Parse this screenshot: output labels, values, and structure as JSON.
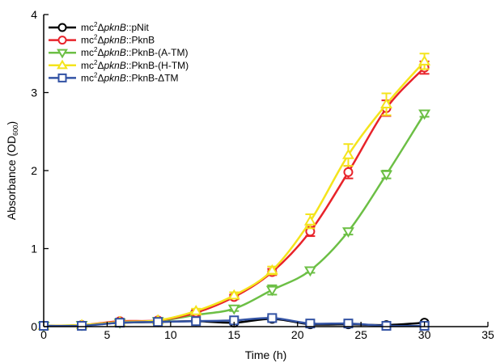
{
  "chart_data": {
    "type": "line",
    "xlabel": "Time (h)",
    "ylabel": "Absorbance (OD",
    "ylabel_sub": "600",
    "ylabel_end": ")",
    "xlim": [
      0,
      35
    ],
    "ylim": [
      0,
      4
    ],
    "xticks": [
      0,
      5,
      10,
      15,
      20,
      25,
      30,
      35
    ],
    "yticks": [
      0,
      1,
      2,
      3,
      4
    ],
    "grid": false,
    "legend_position": "top-left",
    "x": [
      0,
      3,
      6,
      9,
      12,
      15,
      18,
      21,
      24,
      27,
      30
    ],
    "series": [
      {
        "legend_parts": [
          "mc",
          "2",
          "Δ",
          "pknB",
          "::pNit"
        ],
        "color": "#000000",
        "marker": "circle",
        "values": [
          0.01,
          0.02,
          0.05,
          0.06,
          0.07,
          0.05,
          0.1,
          0.03,
          0.03,
          0.02,
          0.05
        ],
        "errors": [
          0.01,
          0.01,
          0.01,
          0.01,
          0.01,
          0.01,
          0.02,
          0.01,
          0.01,
          0.01,
          0.01
        ]
      },
      {
        "legend_parts": [
          "mc",
          "2",
          "Δ",
          "pknB",
          "::PknB"
        ],
        "color": "#e8232a",
        "marker": "circle",
        "values": [
          0.01,
          0.02,
          0.07,
          0.08,
          0.18,
          0.38,
          0.7,
          1.22,
          1.98,
          2.8,
          3.32
        ],
        "errors": [
          0.01,
          0.01,
          0.02,
          0.02,
          0.03,
          0.03,
          0.04,
          0.06,
          0.08,
          0.1,
          0.08
        ]
      },
      {
        "legend_parts": [
          "mc",
          "2",
          "Δ",
          "pknB",
          "::PknB-(A-TM)"
        ],
        "color": "#6cbf45",
        "marker": "triangle-down",
        "values": [
          0.01,
          0.02,
          0.05,
          0.07,
          0.15,
          0.23,
          0.47,
          0.72,
          1.22,
          1.95,
          2.73
        ],
        "errors": [
          0.01,
          0.01,
          0.01,
          0.01,
          0.02,
          0.03,
          0.06,
          0.03,
          0.04,
          0.05,
          0.04
        ]
      },
      {
        "legend_parts": [
          "mc",
          "2",
          "Δ",
          "pknB",
          "::PknB-(H-TM)"
        ],
        "color": "#f4e41c",
        "marker": "triangle-up",
        "values": [
          0.01,
          0.02,
          0.06,
          0.08,
          0.2,
          0.4,
          0.72,
          1.35,
          2.2,
          2.85,
          3.4
        ],
        "errors": [
          0.01,
          0.01,
          0.02,
          0.02,
          0.03,
          0.04,
          0.05,
          0.09,
          0.14,
          0.14,
          0.1
        ]
      },
      {
        "legend_parts": [
          "mc",
          "2",
          "Δ",
          "pknB",
          "::PknB-ΔTM"
        ],
        "color": "#3353a4",
        "marker": "square",
        "values": [
          0.01,
          0.01,
          0.05,
          0.06,
          0.07,
          0.08,
          0.11,
          0.04,
          0.04,
          0.01,
          0.01
        ],
        "errors": [
          0.01,
          0.01,
          0.01,
          0.01,
          0.01,
          0.01,
          0.02,
          0.01,
          0.01,
          0.01,
          0.01
        ]
      }
    ]
  }
}
